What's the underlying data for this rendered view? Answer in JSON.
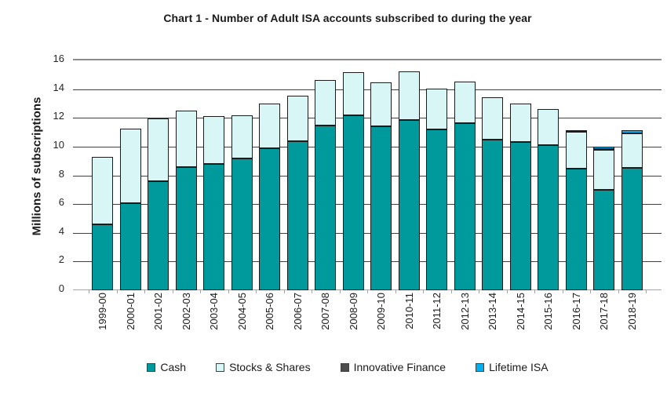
{
  "chart_data": {
    "type": "bar",
    "stacked": true,
    "title": "Chart 1 - Number of Adult ISA accounts subscribed to during the year",
    "xlabel": "",
    "ylabel": "Millions of subscriptions",
    "ylim": [
      0,
      16
    ],
    "yticks": [
      0,
      2,
      4,
      6,
      8,
      10,
      12,
      14,
      16
    ],
    "grid": true,
    "legend_position": "bottom",
    "categories": [
      "1999-00",
      "2000-01",
      "2001-02",
      "2002-03",
      "2003-04",
      "2004-05",
      "2005-06",
      "2006-07",
      "2007-08",
      "2008-09",
      "2009-10",
      "2010-11",
      "2011-12",
      "2012-13",
      "2013-14",
      "2014-15",
      "2015-16",
      "2016-17",
      "2017-18",
      "2018-19"
    ],
    "series": [
      {
        "name": "Cash",
        "color": "#009a9c",
        "values": [
          4.6,
          6.05,
          7.6,
          8.55,
          8.8,
          9.2,
          9.9,
          10.4,
          11.45,
          12.2,
          11.4,
          11.85,
          11.2,
          11.65,
          10.5,
          10.3,
          10.1,
          8.45,
          7.0,
          8.5
        ]
      },
      {
        "name": "Stocks & Shares",
        "color": "#d9f6f7",
        "values": [
          4.7,
          5.2,
          4.35,
          3.95,
          3.3,
          3.0,
          3.1,
          3.15,
          3.2,
          3.0,
          3.05,
          3.4,
          2.85,
          2.9,
          2.95,
          2.7,
          2.5,
          2.6,
          2.8,
          2.4
        ]
      },
      {
        "name": "Innovative Finance",
        "color": "#4d4d4d",
        "values": [
          0,
          0,
          0,
          0,
          0,
          0,
          0,
          0,
          0,
          0,
          0,
          0,
          0,
          0,
          0,
          0,
          0,
          0.03,
          0.03,
          0.04
        ]
      },
      {
        "name": "Lifetime ISA",
        "color": "#00b0f0",
        "values": [
          0,
          0,
          0,
          0,
          0,
          0,
          0,
          0,
          0,
          0,
          0,
          0,
          0,
          0,
          0,
          0,
          0,
          0,
          0.17,
          0.22
        ]
      }
    ],
    "axis_colors": {
      "gridline": "#404040",
      "plot_top_border": "#8c8c8c",
      "baseline": "#a6a6a6",
      "bar_outline": "#1c1c1c"
    }
  }
}
